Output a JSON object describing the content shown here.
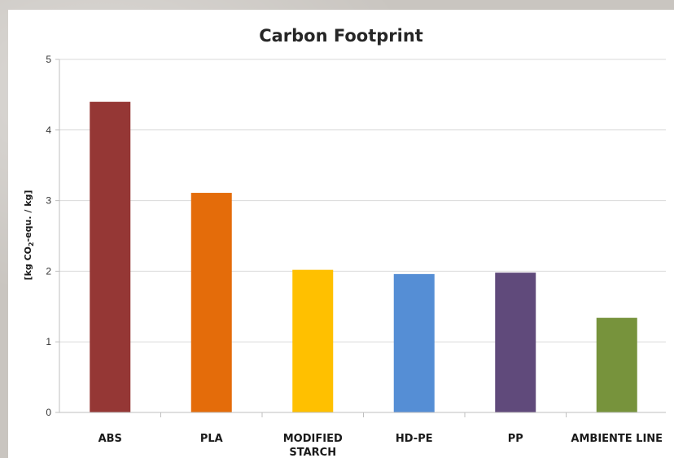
{
  "chart_data": {
    "type": "bar",
    "title": "Carbon Footprint",
    "xlabel": "",
    "ylabel": "[kg CO2-equ. / kg]",
    "ylabel_parts": {
      "before": "[kg CO",
      "sub": "2",
      "after": "-equ. / kg]"
    },
    "ylim": [
      0,
      5
    ],
    "yticks": [
      0,
      1,
      2,
      3,
      4,
      5
    ],
    "grid": true,
    "legend": "none",
    "categories": [
      "ABS",
      "PLA",
      "MODIFIED STARCH",
      "HD-PE",
      "PP",
      "AMBIENTE LINE"
    ],
    "category_lines": [
      [
        "ABS"
      ],
      [
        "PLA"
      ],
      [
        "MODIFIED",
        "STARCH"
      ],
      [
        "HD-PE"
      ],
      [
        "PP"
      ],
      [
        "AMBIENTE LINE"
      ]
    ],
    "values": [
      4.4,
      3.11,
      2.02,
      1.96,
      1.98,
      1.34
    ],
    "colors": [
      "#953735",
      "#e46c0a",
      "#ffc000",
      "#558ed5",
      "#604a7b",
      "#77933c"
    ]
  }
}
